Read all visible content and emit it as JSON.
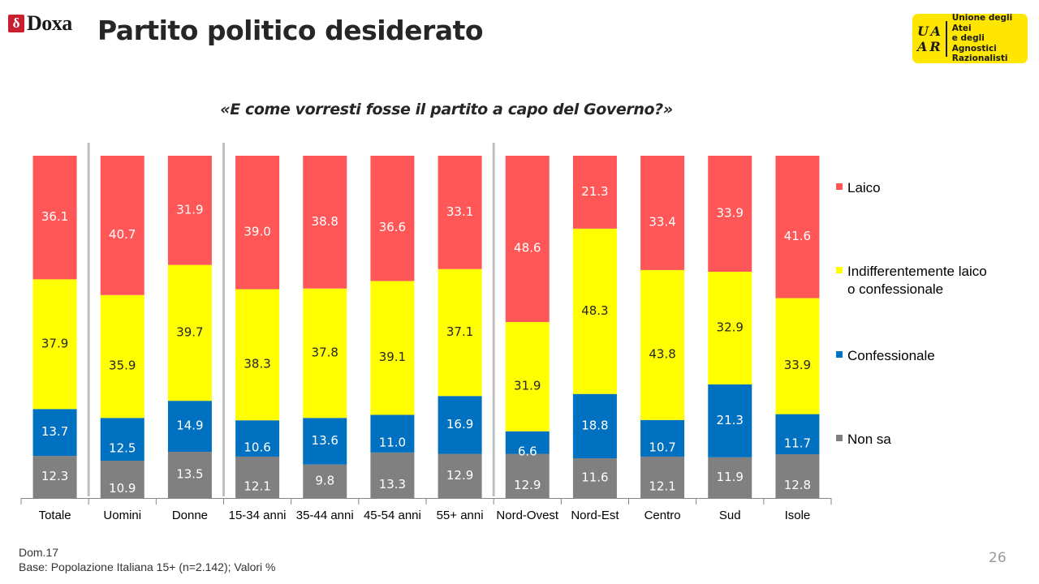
{
  "header": {
    "logo_text": "Doxa",
    "logo_mark": "δ",
    "title": "Partito politico desiderato",
    "partner_logo": {
      "mark": "UA AR",
      "lines": [
        "Unione degli Atei",
        "e degli Agnostici",
        "Razionalisti"
      ]
    }
  },
  "question": "«E come vorresti fosse il partito a capo del Governo?»",
  "chart_data": {
    "type": "bar",
    "stacked": true,
    "normalized_percent": true,
    "categories": [
      "Totale",
      "Uomini",
      "Donne",
      "15-34 anni",
      "35-44 anni",
      "45-54 anni",
      "55+ anni",
      "Nord-Ovest",
      "Nord-Est",
      "Centro",
      "Sud",
      "Isole"
    ],
    "groups": [
      [
        "Totale"
      ],
      [
        "Uomini",
        "Donne"
      ],
      [
        "15-34 anni",
        "35-44 anni",
        "45-54 anni",
        "55+ anni"
      ],
      [
        "Nord-Ovest",
        "Nord-Est",
        "Centro",
        "Sud",
        "Isole"
      ]
    ],
    "series": [
      {
        "name": "Non sa",
        "color": "#808080",
        "values": [
          12.3,
          10.9,
          13.5,
          12.1,
          9.8,
          13.3,
          12.9,
          12.9,
          11.6,
          12.1,
          11.9,
          12.8
        ]
      },
      {
        "name": "Confessionale",
        "color": "#0070c0",
        "values": [
          13.7,
          12.5,
          14.9,
          10.6,
          13.6,
          11.0,
          16.9,
          6.6,
          18.8,
          10.7,
          21.3,
          11.7
        ]
      },
      {
        "name": "Indifferentemente laico o confessionale",
        "color": "#ffff00",
        "values": [
          37.9,
          35.9,
          39.7,
          38.3,
          37.8,
          39.1,
          37.1,
          31.9,
          48.3,
          43.8,
          32.9,
          33.9
        ]
      },
      {
        "name": "Laico",
        "color": "#ff5757",
        "values": [
          36.1,
          40.7,
          31.9,
          39.0,
          38.8,
          36.6,
          33.1,
          48.6,
          21.3,
          33.4,
          33.9,
          41.6
        ]
      }
    ],
    "legend_order": [
      "Laico",
      "Indifferentemente laico o confessionale",
      "Confessionale",
      "Non sa"
    ],
    "legend_position": "right",
    "ylim": [
      0,
      100
    ],
    "grid": false,
    "data_labels": true
  },
  "footnote": {
    "line1": "Dom.17",
    "line2": "Base: Popolazione Italiana 15+ (n=2.142); Valori %"
  },
  "page_number": "26"
}
